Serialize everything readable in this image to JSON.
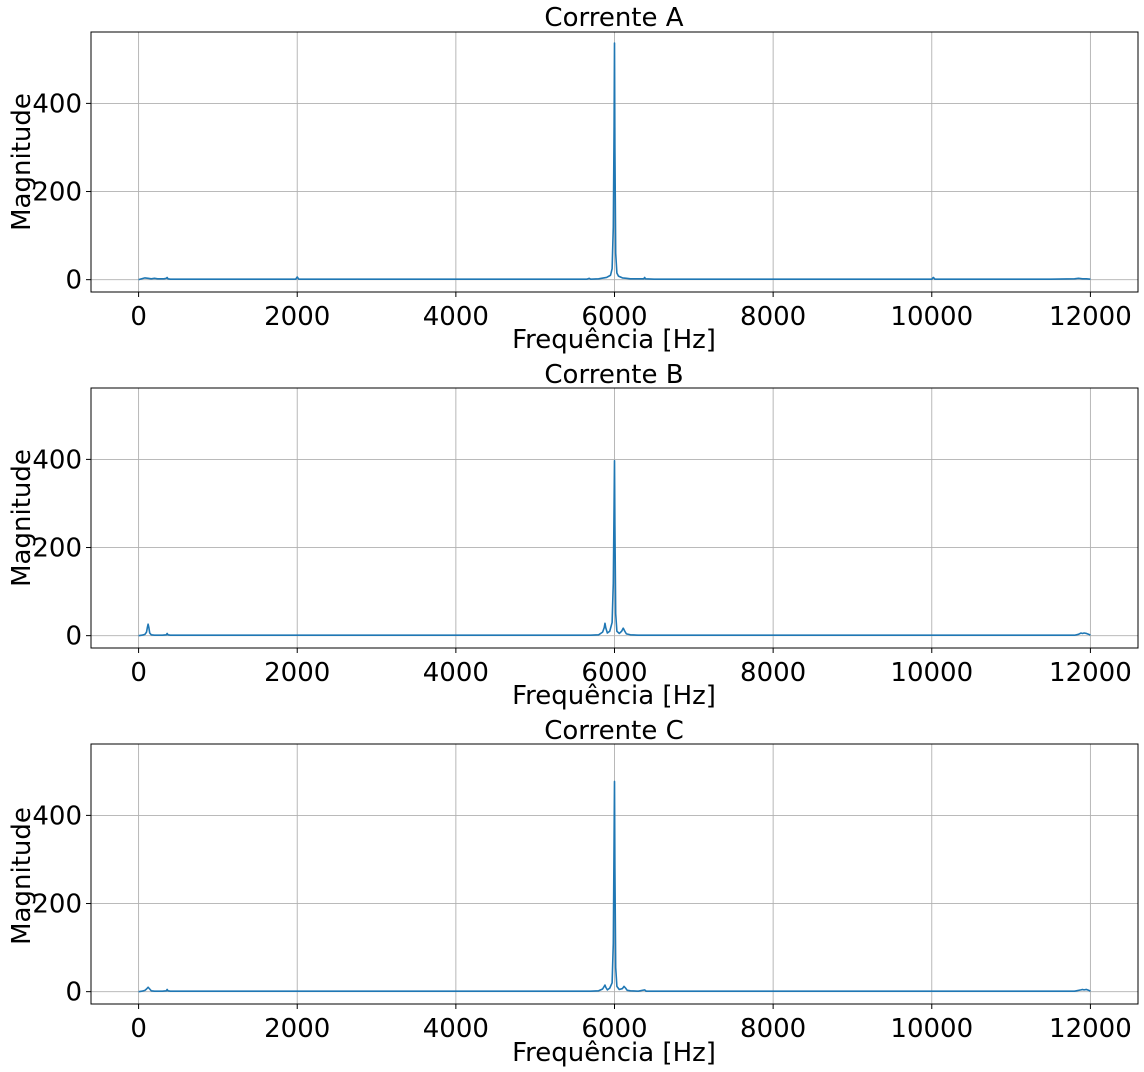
{
  "figure": {
    "line_color": "#1f77b4",
    "grid_color": "#b0b0b0",
    "background": "#ffffff"
  },
  "chart_data": [
    {
      "type": "line",
      "title": "Corrente A",
      "xlabel": "Frequência [Hz]",
      "ylabel": "Magnitude",
      "xlim": [
        -600,
        12600
      ],
      "ylim": [
        -28,
        562
      ],
      "xticks": [
        0,
        2000,
        4000,
        6000,
        8000,
        10000,
        12000
      ],
      "yticks": [
        0,
        200,
        400
      ],
      "grid": true,
      "series": [
        {
          "x": [
            0,
            40,
            80,
            120,
            160,
            200,
            240,
            280,
            320,
            350,
            360,
            370,
            400,
            500,
            700,
            1000,
            1500,
            1980,
            2000,
            2020,
            2400,
            3000,
            3600,
            4000,
            4500,
            5000,
            5300,
            5500,
            5650,
            5680,
            5700,
            5800,
            5900,
            5950,
            5970,
            5985,
            5995,
            6000,
            6005,
            6015,
            6030,
            6050,
            6100,
            6150,
            6200,
            6300,
            6370,
            6380,
            6390,
            6500,
            6750,
            7000,
            7500,
            8000,
            8500,
            9000,
            9500,
            10000,
            10020,
            10040,
            10100,
            10500,
            11000,
            11500,
            11800,
            11850,
            11900,
            11950,
            12000
          ],
          "y": [
            0,
            2,
            4,
            3,
            2,
            3,
            2,
            2,
            2,
            3,
            5,
            2,
            1,
            1,
            1,
            1,
            1,
            1,
            6,
            1,
            1,
            1,
            1,
            1,
            1,
            1,
            1,
            1,
            1,
            3,
            1,
            2,
            5,
            10,
            25,
            120,
            350,
            537,
            300,
            60,
            15,
            8,
            4,
            3,
            2,
            2,
            2,
            5,
            2,
            1,
            1,
            1,
            1,
            1,
            1,
            1,
            1,
            1,
            5,
            1,
            1,
            1,
            1,
            1,
            2,
            3,
            2,
            2,
            1
          ]
        }
      ]
    },
    {
      "type": "line",
      "title": "Corrente B",
      "xlabel": "Frequência [Hz]",
      "ylabel": "Magnitude",
      "xlim": [
        -600,
        12600
      ],
      "ylim": [
        -28,
        562
      ],
      "xticks": [
        0,
        2000,
        4000,
        6000,
        8000,
        10000,
        12000
      ],
      "yticks": [
        0,
        200,
        400
      ],
      "grid": true,
      "series": [
        {
          "x": [
            0,
            40,
            80,
            100,
            110,
            120,
            130,
            140,
            160,
            200,
            300,
            350,
            360,
            370,
            400,
            500,
            700,
            1000,
            1500,
            2000,
            2400,
            3000,
            4000,
            5000,
            5500,
            5700,
            5800,
            5850,
            5870,
            5880,
            5890,
            5910,
            5940,
            5970,
            5985,
            5995,
            6000,
            6005,
            6015,
            6030,
            6060,
            6090,
            6110,
            6130,
            6150,
            6200,
            6300,
            6500,
            7000,
            8000,
            9000,
            10000,
            11000,
            11500,
            11800,
            11850,
            11880,
            11900,
            11920,
            11950,
            11980,
            12000
          ],
          "y": [
            0,
            1,
            3,
            8,
            18,
            26,
            18,
            6,
            2,
            1,
            1,
            2,
            5,
            2,
            1,
            1,
            1,
            1,
            1,
            1,
            1,
            1,
            1,
            1,
            1,
            1,
            2,
            8,
            18,
            28,
            18,
            6,
            10,
            30,
            120,
            300,
            397,
            250,
            50,
            10,
            5,
            10,
            17,
            10,
            4,
            2,
            1,
            1,
            1,
            1,
            1,
            1,
            1,
            1,
            1,
            3,
            6,
            5,
            6,
            5,
            3,
            1
          ]
        }
      ]
    },
    {
      "type": "line",
      "title": "Corrente C",
      "xlabel": "Frequência [Hz]",
      "ylabel": "Magnitude",
      "xlim": [
        -600,
        12600
      ],
      "ylim": [
        -28,
        562
      ],
      "xticks": [
        0,
        2000,
        4000,
        6000,
        8000,
        10000,
        12000
      ],
      "yticks": [
        0,
        200,
        400
      ],
      "grid": true,
      "series": [
        {
          "x": [
            0,
            40,
            80,
            100,
            120,
            140,
            160,
            200,
            300,
            350,
            360,
            370,
            400,
            500,
            700,
            1000,
            2000,
            3000,
            4000,
            5000,
            5500,
            5700,
            5800,
            5850,
            5870,
            5880,
            5890,
            5910,
            5940,
            5970,
            5985,
            5995,
            6000,
            6005,
            6015,
            6030,
            6060,
            6100,
            6120,
            6140,
            6160,
            6200,
            6300,
            6380,
            6400,
            6500,
            7000,
            8000,
            9000,
            10000,
            11000,
            11500,
            11800,
            11880,
            11900,
            11920,
            11950,
            11980,
            12000
          ],
          "y": [
            0,
            1,
            3,
            6,
            10,
            6,
            2,
            1,
            1,
            2,
            5,
            2,
            1,
            1,
            1,
            1,
            1,
            1,
            1,
            1,
            1,
            1,
            2,
            6,
            12,
            15,
            10,
            4,
            8,
            20,
            110,
            350,
            477,
            280,
            55,
            12,
            5,
            7,
            12,
            8,
            3,
            2,
            1,
            4,
            1,
            1,
            1,
            1,
            1,
            1,
            1,
            1,
            1,
            4,
            5,
            4,
            5,
            3,
            1
          ]
        }
      ]
    }
  ]
}
